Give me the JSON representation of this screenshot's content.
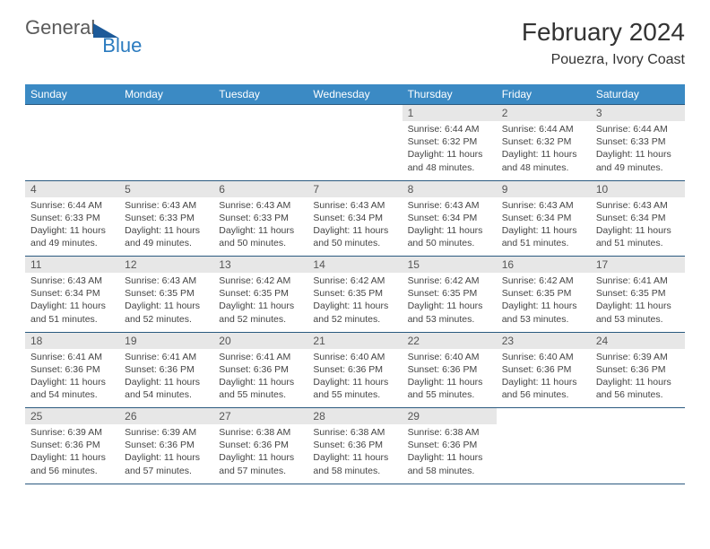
{
  "brand": {
    "word1": "General",
    "word2": "Blue"
  },
  "title": "February 2024",
  "location": "Pouezra, Ivory Coast",
  "dow": [
    "Sunday",
    "Monday",
    "Tuesday",
    "Wednesday",
    "Thursday",
    "Friday",
    "Saturday"
  ],
  "colors": {
    "header_bg": "#3b8ac4",
    "daynum_bg": "#e7e7e7",
    "rule": "#2b5a80",
    "brand_gray": "#5a5a5a",
    "brand_blue": "#2b7bbf",
    "tri": "#1d5a99"
  },
  "weeks": [
    [
      null,
      null,
      null,
      null,
      {
        "n": "1",
        "sr": "Sunrise: 6:44 AM",
        "ss": "Sunset: 6:32 PM",
        "dl": "Daylight: 11 hours and 48 minutes."
      },
      {
        "n": "2",
        "sr": "Sunrise: 6:44 AM",
        "ss": "Sunset: 6:32 PM",
        "dl": "Daylight: 11 hours and 48 minutes."
      },
      {
        "n": "3",
        "sr": "Sunrise: 6:44 AM",
        "ss": "Sunset: 6:33 PM",
        "dl": "Daylight: 11 hours and 49 minutes."
      }
    ],
    [
      {
        "n": "4",
        "sr": "Sunrise: 6:44 AM",
        "ss": "Sunset: 6:33 PM",
        "dl": "Daylight: 11 hours and 49 minutes."
      },
      {
        "n": "5",
        "sr": "Sunrise: 6:43 AM",
        "ss": "Sunset: 6:33 PM",
        "dl": "Daylight: 11 hours and 49 minutes."
      },
      {
        "n": "6",
        "sr": "Sunrise: 6:43 AM",
        "ss": "Sunset: 6:33 PM",
        "dl": "Daylight: 11 hours and 50 minutes."
      },
      {
        "n": "7",
        "sr": "Sunrise: 6:43 AM",
        "ss": "Sunset: 6:34 PM",
        "dl": "Daylight: 11 hours and 50 minutes."
      },
      {
        "n": "8",
        "sr": "Sunrise: 6:43 AM",
        "ss": "Sunset: 6:34 PM",
        "dl": "Daylight: 11 hours and 50 minutes."
      },
      {
        "n": "9",
        "sr": "Sunrise: 6:43 AM",
        "ss": "Sunset: 6:34 PM",
        "dl": "Daylight: 11 hours and 51 minutes."
      },
      {
        "n": "10",
        "sr": "Sunrise: 6:43 AM",
        "ss": "Sunset: 6:34 PM",
        "dl": "Daylight: 11 hours and 51 minutes."
      }
    ],
    [
      {
        "n": "11",
        "sr": "Sunrise: 6:43 AM",
        "ss": "Sunset: 6:34 PM",
        "dl": "Daylight: 11 hours and 51 minutes."
      },
      {
        "n": "12",
        "sr": "Sunrise: 6:43 AM",
        "ss": "Sunset: 6:35 PM",
        "dl": "Daylight: 11 hours and 52 minutes."
      },
      {
        "n": "13",
        "sr": "Sunrise: 6:42 AM",
        "ss": "Sunset: 6:35 PM",
        "dl": "Daylight: 11 hours and 52 minutes."
      },
      {
        "n": "14",
        "sr": "Sunrise: 6:42 AM",
        "ss": "Sunset: 6:35 PM",
        "dl": "Daylight: 11 hours and 52 minutes."
      },
      {
        "n": "15",
        "sr": "Sunrise: 6:42 AM",
        "ss": "Sunset: 6:35 PM",
        "dl": "Daylight: 11 hours and 53 minutes."
      },
      {
        "n": "16",
        "sr": "Sunrise: 6:42 AM",
        "ss": "Sunset: 6:35 PM",
        "dl": "Daylight: 11 hours and 53 minutes."
      },
      {
        "n": "17",
        "sr": "Sunrise: 6:41 AM",
        "ss": "Sunset: 6:35 PM",
        "dl": "Daylight: 11 hours and 53 minutes."
      }
    ],
    [
      {
        "n": "18",
        "sr": "Sunrise: 6:41 AM",
        "ss": "Sunset: 6:36 PM",
        "dl": "Daylight: 11 hours and 54 minutes."
      },
      {
        "n": "19",
        "sr": "Sunrise: 6:41 AM",
        "ss": "Sunset: 6:36 PM",
        "dl": "Daylight: 11 hours and 54 minutes."
      },
      {
        "n": "20",
        "sr": "Sunrise: 6:41 AM",
        "ss": "Sunset: 6:36 PM",
        "dl": "Daylight: 11 hours and 55 minutes."
      },
      {
        "n": "21",
        "sr": "Sunrise: 6:40 AM",
        "ss": "Sunset: 6:36 PM",
        "dl": "Daylight: 11 hours and 55 minutes."
      },
      {
        "n": "22",
        "sr": "Sunrise: 6:40 AM",
        "ss": "Sunset: 6:36 PM",
        "dl": "Daylight: 11 hours and 55 minutes."
      },
      {
        "n": "23",
        "sr": "Sunrise: 6:40 AM",
        "ss": "Sunset: 6:36 PM",
        "dl": "Daylight: 11 hours and 56 minutes."
      },
      {
        "n": "24",
        "sr": "Sunrise: 6:39 AM",
        "ss": "Sunset: 6:36 PM",
        "dl": "Daylight: 11 hours and 56 minutes."
      }
    ],
    [
      {
        "n": "25",
        "sr": "Sunrise: 6:39 AM",
        "ss": "Sunset: 6:36 PM",
        "dl": "Daylight: 11 hours and 56 minutes."
      },
      {
        "n": "26",
        "sr": "Sunrise: 6:39 AM",
        "ss": "Sunset: 6:36 PM",
        "dl": "Daylight: 11 hours and 57 minutes."
      },
      {
        "n": "27",
        "sr": "Sunrise: 6:38 AM",
        "ss": "Sunset: 6:36 PM",
        "dl": "Daylight: 11 hours and 57 minutes."
      },
      {
        "n": "28",
        "sr": "Sunrise: 6:38 AM",
        "ss": "Sunset: 6:36 PM",
        "dl": "Daylight: 11 hours and 58 minutes."
      },
      {
        "n": "29",
        "sr": "Sunrise: 6:38 AM",
        "ss": "Sunset: 6:36 PM",
        "dl": "Daylight: 11 hours and 58 minutes."
      },
      null,
      null
    ]
  ]
}
